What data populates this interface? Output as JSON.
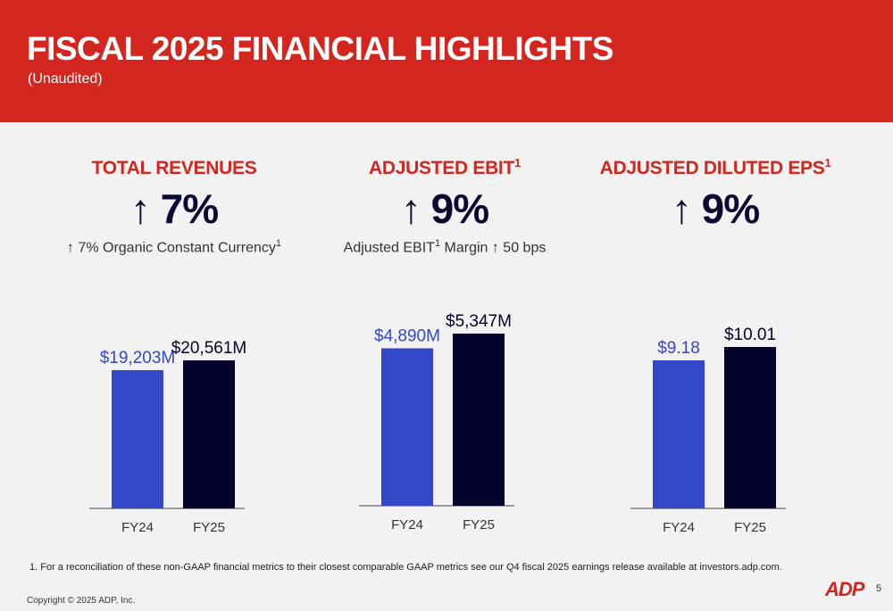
{
  "header": {
    "title": "FISCAL 2025 FINANCIAL HIGHLIGHTS",
    "subtitle": "(Unaudited)"
  },
  "metrics": [
    {
      "title": "TOTAL REVENUES",
      "title_sup": "",
      "arrow": "↑",
      "value": "7%",
      "note_arrow": "↑",
      "note_pre": "7%  Organic Constant Currency",
      "note_sup": "1",
      "note_post": ""
    },
    {
      "title": "ADJUSTED EBIT",
      "title_sup": "1",
      "arrow": "↑",
      "value": "9%",
      "note_arrow": "",
      "note_pre": "Adjusted EBIT",
      "note_sup": "1",
      "note_post": " Margin ↑ 50 bps"
    },
    {
      "title": "ADJUSTED DILUTED EPS",
      "title_sup": "1",
      "arrow": "↑",
      "value": "9%",
      "note_arrow": "",
      "note_pre": "",
      "note_sup": "",
      "note_post": ""
    }
  ],
  "colors": {
    "brand_red": "#d2261f",
    "fy24_bar": "#3347c8",
    "fy25_bar": "#03032b"
  },
  "chart_data": [
    {
      "type": "bar",
      "title": "TOTAL REVENUES",
      "categories": [
        "FY24",
        "FY25"
      ],
      "values": [
        19203,
        20561
      ],
      "data_labels": [
        "$19,203M",
        "$20,561M"
      ],
      "unit": "$M"
    },
    {
      "type": "bar",
      "title": "ADJUSTED EBIT",
      "categories": [
        "FY24",
        "FY25"
      ],
      "values": [
        4890,
        5347
      ],
      "data_labels": [
        "$4,890M",
        "$5,347M"
      ],
      "unit": "$M"
    },
    {
      "type": "bar",
      "title": "ADJUSTED DILUTED EPS",
      "categories": [
        "FY24",
        "FY25"
      ],
      "values": [
        9.18,
        10.01
      ],
      "data_labels": [
        "$9.18",
        "$10.01"
      ],
      "unit": "$"
    }
  ],
  "footer": {
    "footnote": "1.  For a reconciliation of these non-GAAP financial metrics to their closest comparable GAAP metrics see our Q4 fiscal 2025 earnings release available at investors.adp.com.",
    "copyright": "Copyright © 2025 ADP, Inc.",
    "page_number": "5",
    "logo_text": "ADP"
  }
}
